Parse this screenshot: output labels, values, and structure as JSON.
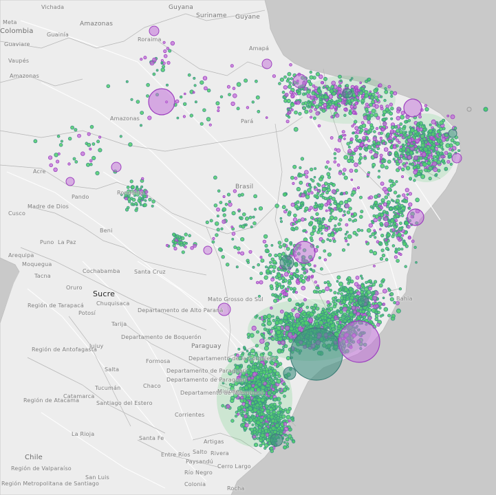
{
  "map": {
    "style": "light grey basemap with proportional circle markers",
    "colors": {
      "ocean": "#c9c9c9",
      "land": "#ededed",
      "border": "#b0b0b0",
      "road": "#ffffff",
      "marker_green_fill": "#4fcf6a",
      "marker_green_stroke": "#3e8f88",
      "marker_purple_fill": "#c16fd8",
      "marker_purple_stroke": "#9d3fbf",
      "marker_large_fill": "#3f8f80"
    },
    "labels": {
      "vichada": "Vichada",
      "guyana": "Guyana",
      "suriname": "Suriname",
      "guyane": "Guyane",
      "meta": "Meta",
      "colombia": "Colombia",
      "guainia": "Guainía",
      "amazonas_ve": "Amazonas",
      "guaviare": "Guaviare",
      "roraima": "Roraima",
      "amapa": "Amapá",
      "vaupes": "Vaupés",
      "amazonas_co": "Amazonas",
      "amazonas_br": "Amazonas",
      "para": "Pará",
      "acre": "Acre",
      "madre_de_dios": "Madre de Dios",
      "pando": "Pando",
      "rondonia": "Rondônia",
      "brasil": "Brasil",
      "cusco": "Cusco",
      "beni": "Beni",
      "puno": "Puno",
      "la_paz": "La Paz",
      "arequipa": "Arequipa",
      "moquegua": "Moquegua",
      "tacna": "Tacna",
      "cochabamba": "Cochabamba",
      "santa_cruz": "Santa Cruz",
      "oruro": "Oruro",
      "sucre": "Sucre",
      "chuquisaca": "Chuquisaca",
      "region_tarapaca": "Región de Tarapacá",
      "potosi": "Potosí",
      "depto_alto_parana": "Departamento de Alto Paraná",
      "mato_grosso_do_sul": "Mato Grosso do Sul",
      "tarija": "Tarija",
      "depto_boqueron": "Departamento de Boquerón",
      "region_antofagasta": "Región de Antofagasta",
      "jujuy": "Jujuy",
      "formosa": "Formosa",
      "paraguay": "Paraguay",
      "depto_la_cordillera": "Departamento de la Cordillera",
      "salta": "Salta",
      "depto_paraguari": "Departamento de Paraguarí",
      "depto_neembucu": "Departamento de Ñeembucú",
      "chaco": "Chaco",
      "catamarca": "Catamarca",
      "region_atacama": "Región de Atacama",
      "tucuman": "Tucumán",
      "santiago_del_estero": "Santiago del Estero",
      "misiones": "Misiones",
      "corrientes": "Corrientes",
      "la_rioja": "La Rioja",
      "santa_fe": "Santa Fe",
      "chile": "Chile",
      "entre_rios": "Entre Ríos",
      "salto": "Salto",
      "paysandu": "Paysandú",
      "rivera": "Rivera",
      "rio_negro": "Río Negro",
      "region_valparaiso": "Región de Valparaíso",
      "san_luis": "San Luis",
      "region_metropolitana": "Región Metropolitana de Santiago",
      "colonia": "Colonia",
      "rocha": "Rocha",
      "cerro_largo": "Cerro Largo",
      "artigas": "Artigas",
      "bahia": "Bahia"
    }
  }
}
